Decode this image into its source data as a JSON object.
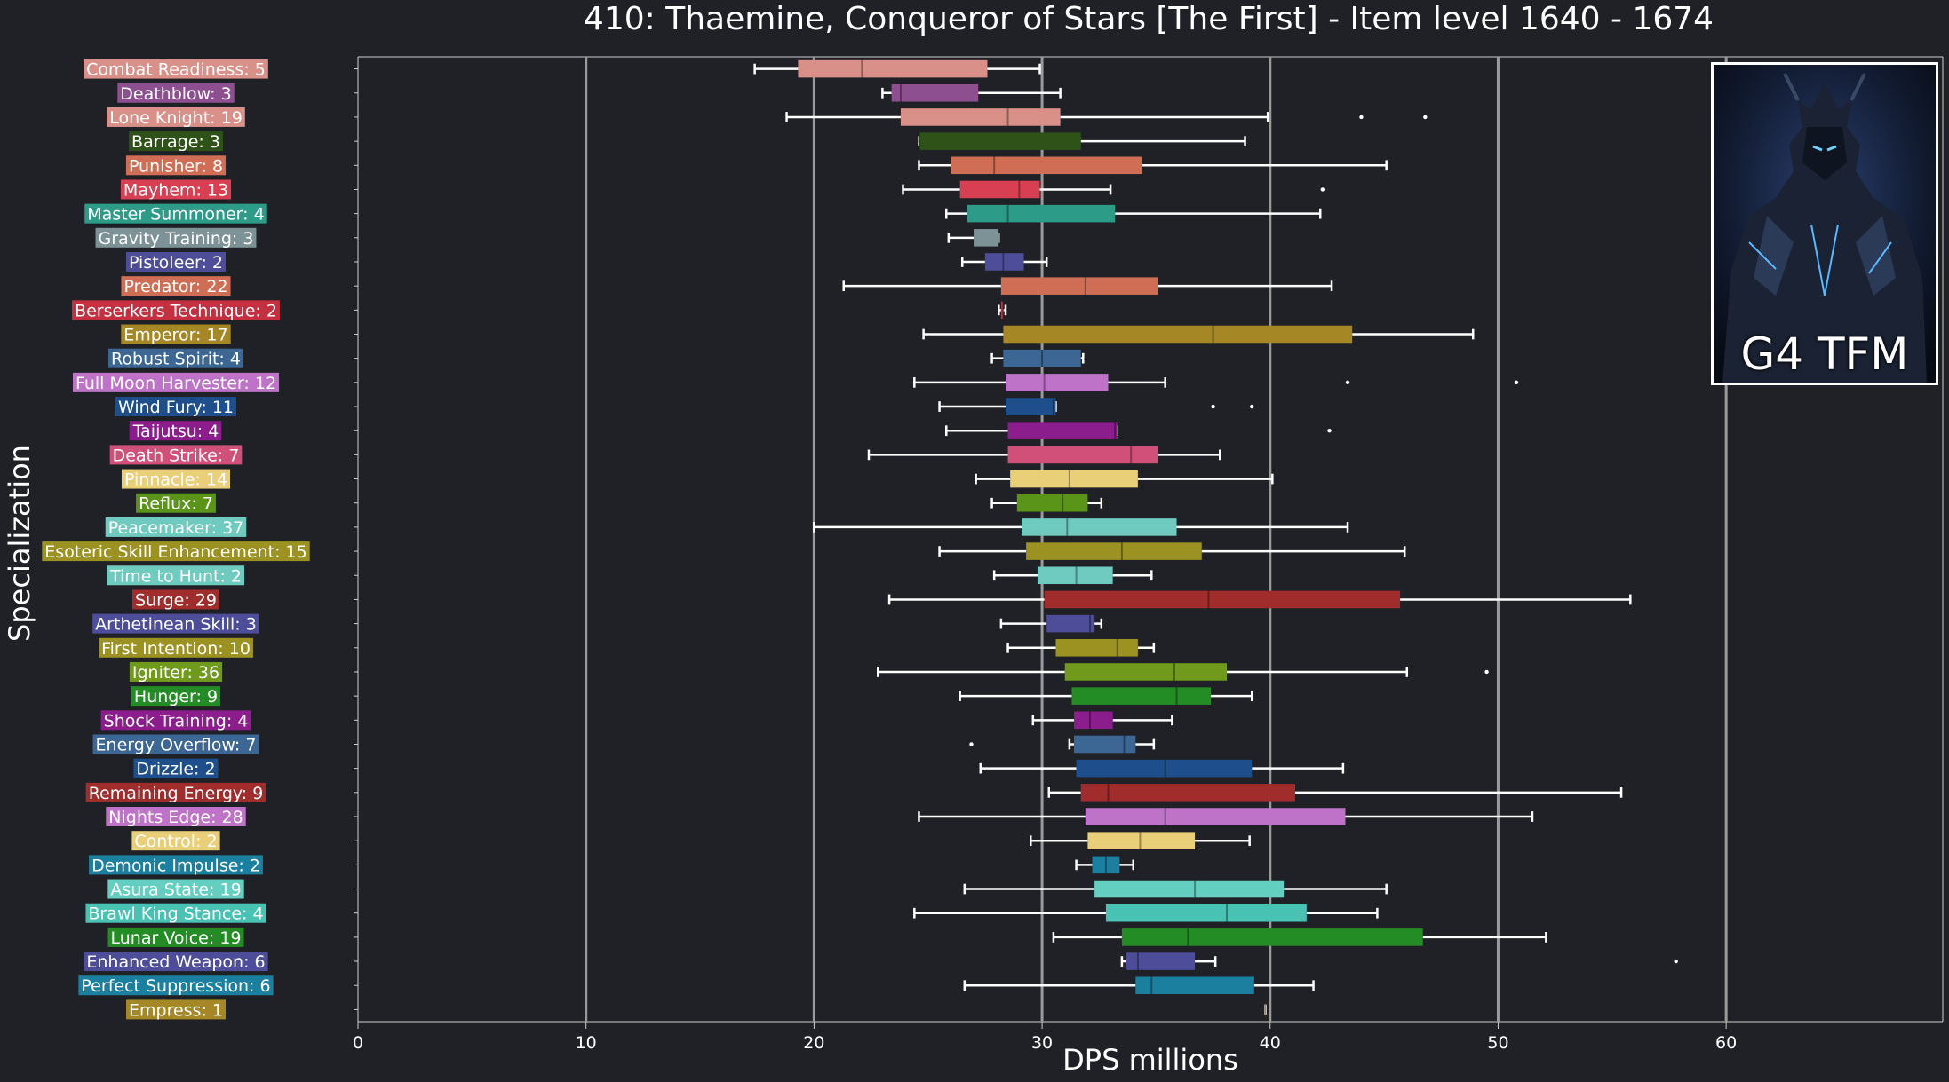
{
  "chart_data": {
    "type": "boxplot",
    "orientation": "horizontal",
    "title": "410: Thaemine, Conqueror of Stars [The First] - Item level 1640 - 1674",
    "xlabel": "DPS millions",
    "ylabel": "Specialization",
    "xlim": [
      0,
      69.5
    ],
    "xticks": [
      0,
      10,
      20,
      30,
      40,
      50,
      60
    ],
    "grid_x": [
      10,
      20,
      30,
      40,
      50,
      60
    ],
    "legend": "none",
    "background": "#1f2126",
    "inset_image": {
      "caption": "G4 TFM",
      "placement": "top-right"
    },
    "series": [
      {
        "label": "Combat Readiness: 5",
        "color": "#d99088",
        "whislo": 17.4,
        "q1": 19.3,
        "med": 22.1,
        "q3": 27.6,
        "whishi": 29.9,
        "fliers": []
      },
      {
        "label": "Deathblow: 3",
        "color": "#8e4f90",
        "whislo": 23.0,
        "q1": 23.4,
        "med": 23.8,
        "q3": 27.2,
        "whishi": 30.8,
        "fliers": []
      },
      {
        "label": "Lone Knight: 19",
        "color": "#d99088",
        "whislo": 18.8,
        "q1": 23.8,
        "med": 28.5,
        "q3": 30.8,
        "whishi": 39.9,
        "fliers": [
          44.0,
          46.8
        ]
      },
      {
        "label": "Barrage: 3",
        "color": "#2e5218",
        "whislo": 24.6,
        "q1": 24.6,
        "med": 24.6,
        "q3": 31.7,
        "whishi": 38.9,
        "fliers": []
      },
      {
        "label": "Punisher: 8",
        "color": "#cf6e55",
        "whislo": 24.6,
        "q1": 26.0,
        "med": 27.9,
        "q3": 34.4,
        "whishi": 45.1,
        "fliers": []
      },
      {
        "label": "Mayhem: 13",
        "color": "#d83f52",
        "whislo": 23.9,
        "q1": 26.4,
        "med": 29.0,
        "q3": 29.9,
        "whishi": 33.0,
        "fliers": [
          42.3
        ]
      },
      {
        "label": "Master Summoner: 4",
        "color": "#2c9b88",
        "whislo": 25.8,
        "q1": 26.7,
        "med": 28.5,
        "q3": 33.2,
        "whishi": 42.2,
        "fliers": []
      },
      {
        "label": "Gravity Training: 3",
        "color": "#7d9296",
        "whislo": 25.9,
        "q1": 27.0,
        "med": 28.1,
        "q3": 28.1,
        "whishi": 28.1,
        "fliers": []
      },
      {
        "label": "Pistoleer: 2",
        "color": "#4d4d99",
        "whislo": 26.5,
        "q1": 27.5,
        "med": 28.3,
        "q3": 29.2,
        "whishi": 30.2,
        "fliers": []
      },
      {
        "label": "Predator: 22",
        "color": "#cf6e55",
        "whislo": 21.3,
        "q1": 28.2,
        "med": 31.9,
        "q3": 35.1,
        "whishi": 42.7,
        "fliers": []
      },
      {
        "label": "Berserkers Technique: 2",
        "color": "#c4303f",
        "whislo": 28.1,
        "q1": 28.2,
        "med": 28.3,
        "q3": 28.3,
        "whishi": 28.4,
        "fliers": []
      },
      {
        "label": "Emperor: 17",
        "color": "#a68725",
        "whislo": 24.8,
        "q1": 28.3,
        "med": 37.5,
        "q3": 43.6,
        "whishi": 48.9,
        "fliers": []
      },
      {
        "label": "Robust Spirit: 4",
        "color": "#3c6694",
        "whislo": 27.8,
        "q1": 28.3,
        "med": 30.0,
        "q3": 31.7,
        "whishi": 31.8,
        "fliers": []
      },
      {
        "label": "Full Moon Harvester: 12",
        "color": "#be73c8",
        "whislo": 24.4,
        "q1": 28.4,
        "med": 30.1,
        "q3": 32.9,
        "whishi": 35.4,
        "fliers": [
          43.4,
          50.8
        ]
      },
      {
        "label": "Wind Fury: 11",
        "color": "#1e4e8c",
        "whislo": 25.5,
        "q1": 28.4,
        "med": 30.5,
        "q3": 30.6,
        "whishi": 30.6,
        "fliers": [
          37.5,
          39.2
        ]
      },
      {
        "label": "Taijutsu: 4",
        "color": "#8c1d8c",
        "whislo": 25.8,
        "q1": 28.5,
        "med": 33.2,
        "q3": 33.3,
        "whishi": 33.3,
        "fliers": [
          42.6
        ]
      },
      {
        "label": "Death Strike: 7",
        "color": "#d1507a",
        "whislo": 22.4,
        "q1": 28.5,
        "med": 33.9,
        "q3": 35.1,
        "whishi": 37.8,
        "fliers": []
      },
      {
        "label": "Pinnacle: 14",
        "color": "#e8cf78",
        "whislo": 27.1,
        "q1": 28.6,
        "med": 31.2,
        "q3": 34.2,
        "whishi": 40.1,
        "fliers": []
      },
      {
        "label": "Reflux: 7",
        "color": "#5a9418",
        "whislo": 27.8,
        "q1": 28.9,
        "med": 30.9,
        "q3": 32.0,
        "whishi": 32.6,
        "fliers": []
      },
      {
        "label": "Peacemaker: 37",
        "color": "#6fcabf",
        "whislo": 20.0,
        "q1": 29.1,
        "med": 31.1,
        "q3": 35.9,
        "whishi": 43.4,
        "fliers": []
      },
      {
        "label": "Esoteric Skill Enhancement: 15",
        "color": "#9b9222",
        "whislo": 25.5,
        "q1": 29.3,
        "med": 33.5,
        "q3": 37.0,
        "whishi": 45.9,
        "fliers": []
      },
      {
        "label": "Time to Hunt: 2",
        "color": "#6fcabf",
        "whislo": 27.9,
        "q1": 29.8,
        "med": 31.5,
        "q3": 33.1,
        "whishi": 34.8,
        "fliers": []
      },
      {
        "label": "Surge: 29",
        "color": "#a02c2c",
        "whislo": 23.3,
        "q1": 30.1,
        "med": 37.3,
        "q3": 45.7,
        "whishi": 55.8,
        "fliers": []
      },
      {
        "label": "Arthetinean Skill: 3",
        "color": "#4d4d99",
        "whislo": 28.2,
        "q1": 30.2,
        "med": 32.1,
        "q3": 32.3,
        "whishi": 32.6,
        "fliers": []
      },
      {
        "label": "First Intention: 10",
        "color": "#9b9222",
        "whislo": 28.5,
        "q1": 30.6,
        "med": 33.3,
        "q3": 34.2,
        "whishi": 34.9,
        "fliers": []
      },
      {
        "label": "Igniter: 36",
        "color": "#6f9a1c",
        "whislo": 22.8,
        "q1": 31.0,
        "med": 35.8,
        "q3": 38.1,
        "whishi": 46.0,
        "fliers": [
          49.5
        ]
      },
      {
        "label": "Hunger: 9",
        "color": "#248c24",
        "whislo": 26.4,
        "q1": 31.3,
        "med": 35.9,
        "q3": 37.4,
        "whishi": 39.2,
        "fliers": []
      },
      {
        "label": "Shock Training: 4",
        "color": "#8c1d8c",
        "whislo": 29.6,
        "q1": 31.4,
        "med": 32.1,
        "q3": 33.1,
        "whishi": 35.7,
        "fliers": []
      },
      {
        "label": "Energy Overflow: 7",
        "color": "#3c6694",
        "whislo": 31.2,
        "q1": 31.4,
        "med": 33.6,
        "q3": 34.1,
        "whishi": 34.9,
        "fliers": [
          26.9
        ]
      },
      {
        "label": "Drizzle: 2",
        "color": "#1e4e8c",
        "whislo": 27.3,
        "q1": 31.5,
        "med": 35.4,
        "q3": 39.2,
        "whishi": 43.2,
        "fliers": []
      },
      {
        "label": "Remaining Energy: 9",
        "color": "#a02c2c",
        "whislo": 30.3,
        "q1": 31.7,
        "med": 32.9,
        "q3": 41.1,
        "whishi": 55.4,
        "fliers": []
      },
      {
        "label": "Nights Edge: 28",
        "color": "#be73c8",
        "whislo": 24.6,
        "q1": 31.9,
        "med": 35.4,
        "q3": 43.3,
        "whishi": 51.5,
        "fliers": []
      },
      {
        "label": "Control: 2",
        "color": "#e8cf78",
        "whislo": 29.5,
        "q1": 32.0,
        "med": 34.3,
        "q3": 36.7,
        "whishi": 39.1,
        "fliers": []
      },
      {
        "label": "Demonic Impulse: 2",
        "color": "#1b7fa0",
        "whislo": 31.5,
        "q1": 32.2,
        "med": 32.8,
        "q3": 33.4,
        "whishi": 34.0,
        "fliers": []
      },
      {
        "label": "Asura State: 19",
        "color": "#62cfc0",
        "whislo": 26.6,
        "q1": 32.3,
        "med": 36.7,
        "q3": 40.6,
        "whishi": 45.1,
        "fliers": []
      },
      {
        "label": "Brawl King Stance: 4",
        "color": "#48c2b2",
        "whislo": 24.4,
        "q1": 32.8,
        "med": 38.1,
        "q3": 41.6,
        "whishi": 44.7,
        "fliers": []
      },
      {
        "label": "Lunar Voice: 19",
        "color": "#248c24",
        "whislo": 30.5,
        "q1": 33.5,
        "med": 36.4,
        "q3": 46.7,
        "whishi": 52.1,
        "fliers": []
      },
      {
        "label": "Enhanced Weapon: 6",
        "color": "#4d4d99",
        "whislo": 33.5,
        "q1": 33.7,
        "med": 34.2,
        "q3": 36.7,
        "whishi": 37.6,
        "fliers": [
          57.8
        ]
      },
      {
        "label": "Perfect Suppression: 6",
        "color": "#1b7fa0",
        "whislo": 26.6,
        "q1": 34.1,
        "med": 34.8,
        "q3": 39.3,
        "whishi": 41.9,
        "fliers": []
      },
      {
        "label": "Empress: 1",
        "color": "#a68725",
        "whislo": 39.8,
        "q1": 39.8,
        "med": 39.8,
        "q3": 39.8,
        "whishi": 39.8,
        "fliers": []
      }
    ]
  }
}
